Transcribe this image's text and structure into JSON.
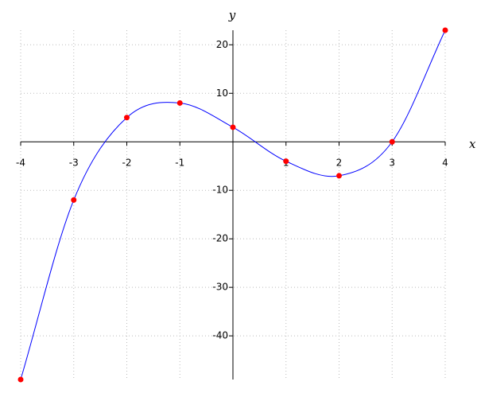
{
  "chart_data": {
    "type": "line",
    "x_label": "x",
    "y_label": "y",
    "x": [
      -4,
      -3,
      -2,
      -1,
      0,
      1,
      2,
      3,
      4
    ],
    "series": [
      {
        "color": "#0000ff",
        "marker_color": "#ff0000",
        "values": [
          -49,
          -12,
          5,
          8,
          3,
          -4,
          -7,
          0,
          23
        ]
      }
    ],
    "xlim": [
      -4,
      4
    ],
    "ylim": [
      -49,
      23
    ],
    "xticks": [
      -4,
      -3,
      -2,
      -1,
      1,
      2,
      3,
      4
    ],
    "yticks": [
      -40,
      -30,
      -20,
      -10,
      10,
      20
    ],
    "grid": true
  }
}
